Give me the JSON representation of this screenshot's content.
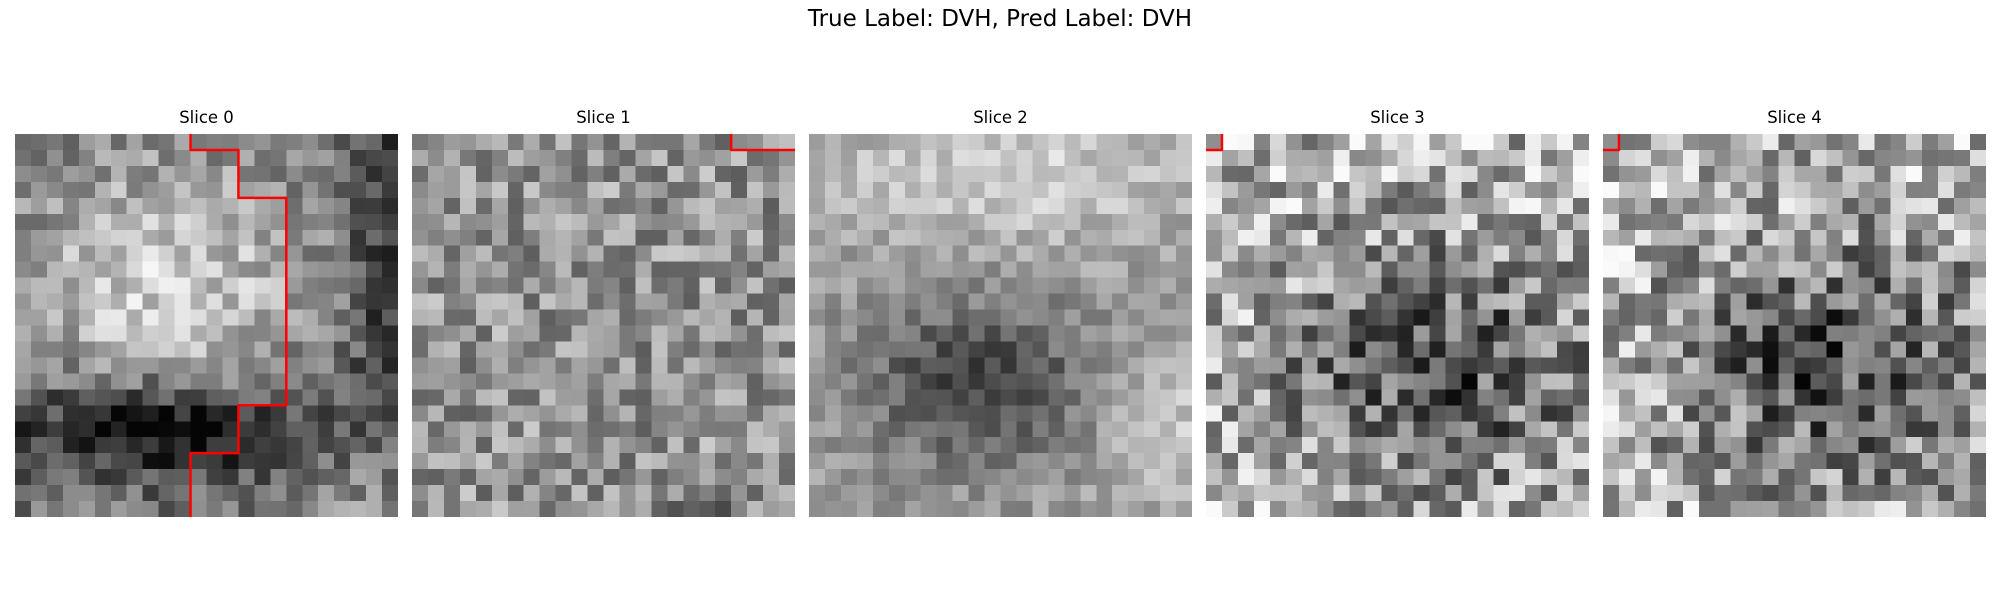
{
  "figure": {
    "title": "True Label: DVH, Pred Label: DVH"
  },
  "panels": [
    {
      "title": "Slice 0",
      "grid_size": 24,
      "texture": {
        "seed": 11,
        "pattern": "bright-blob-dark-lower-band",
        "noise": 0.18
      },
      "contour": [
        [
          11,
          0
        ],
        [
          11,
          1
        ],
        [
          14,
          1
        ],
        [
          14,
          4
        ],
        [
          17,
          4
        ],
        [
          17,
          17
        ],
        [
          14,
          17
        ],
        [
          14,
          20
        ],
        [
          11,
          20
        ],
        [
          11,
          24
        ]
      ]
    },
    {
      "title": "Slice 1",
      "grid_size": 24,
      "texture": {
        "seed": 23,
        "pattern": "uniform-mid-gray",
        "noise": 0.22
      },
      "contour": [
        [
          20,
          0
        ],
        [
          20,
          1
        ],
        [
          24,
          1
        ]
      ]
    },
    {
      "title": "Slice 2",
      "grid_size": 24,
      "texture": {
        "seed": 37,
        "pattern": "light-top-dark-center",
        "noise": 0.12
      },
      "contour": []
    },
    {
      "title": "Slice 3",
      "grid_size": 24,
      "texture": {
        "seed": 41,
        "pattern": "light-edges-dark-center",
        "noise": 0.32
      },
      "contour": [
        [
          0,
          1
        ],
        [
          1,
          1
        ],
        [
          1,
          0
        ]
      ]
    },
    {
      "title": "Slice 4",
      "grid_size": 24,
      "texture": {
        "seed": 53,
        "pattern": "light-edges-dark-center",
        "noise": 0.32
      },
      "contour": [
        [
          0,
          1
        ],
        [
          1,
          1
        ],
        [
          1,
          0
        ]
      ]
    }
  ],
  "colors": {
    "contour": "#ff0000",
    "title_text": "#000000"
  }
}
